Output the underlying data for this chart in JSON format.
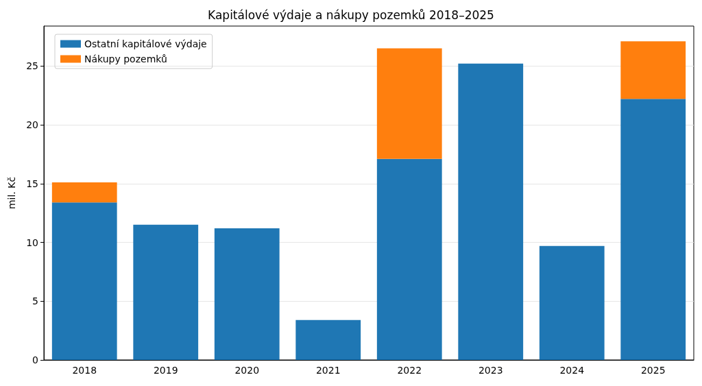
{
  "chart_data": {
    "type": "bar",
    "title": "Kapitálové výdaje a nákupy pozemků 2018–2025",
    "ylabel": "mil. Kč",
    "categories": [
      "2018",
      "2019",
      "2020",
      "2021",
      "2022",
      "2023",
      "2024",
      "2025"
    ],
    "series": [
      {
        "name": "Ostatní kapitálové výdaje",
        "color": "#1f77b4",
        "values": [
          13.4,
          11.5,
          11.2,
          3.4,
          17.1,
          25.2,
          9.7,
          22.2
        ]
      },
      {
        "name": "Nákupy pozemků",
        "color": "#ff7f0e",
        "values": [
          1.7,
          0,
          0,
          0,
          9.4,
          0,
          0,
          4.9
        ]
      }
    ],
    "stacked": true,
    "ylim": [
      0,
      28.4
    ],
    "yticks": [
      0,
      5,
      10,
      15,
      20,
      25
    ],
    "grid": "y",
    "legend": "top left"
  }
}
